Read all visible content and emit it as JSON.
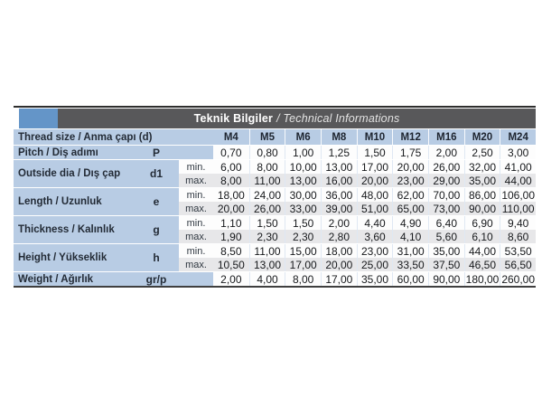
{
  "header": {
    "title_bold": "Teknik Bilgiler",
    "title_italic": "/ Technical Informations"
  },
  "colors": {
    "accent_blue_box": "#6495c8",
    "header_bar_grey": "#58585a",
    "row_light_blue": "#b8cce4",
    "stripe_white": "#fdfdfd",
    "stripe_grey": "#e7e7e9"
  },
  "table": {
    "thread_row_label": "Thread size / Anma çapı (d)",
    "columns": [
      "M4",
      "M5",
      "M6",
      "M8",
      "M10",
      "M12",
      "M16",
      "M20",
      "M24"
    ],
    "min_label": "min.",
    "max_label": "max.",
    "rows": [
      {
        "label": "Pitch / Diş adımı",
        "symbol": "P",
        "type": "single",
        "values": [
          "0,70",
          "0,80",
          "1,00",
          "1,25",
          "1,50",
          "1,75",
          "2,00",
          "2,50",
          "3,00"
        ]
      },
      {
        "label": "Outside dia / Dış çap",
        "symbol": "d1",
        "type": "minmax",
        "min": [
          "6,00",
          "8,00",
          "10,00",
          "13,00",
          "17,00",
          "20,00",
          "26,00",
          "32,00",
          "41,00"
        ],
        "max": [
          "8,00",
          "11,00",
          "13,00",
          "16,00",
          "20,00",
          "23,00",
          "29,00",
          "35,00",
          "44,00"
        ]
      },
      {
        "label": "Length / Uzunluk",
        "symbol": "e",
        "type": "minmax",
        "min": [
          "18,00",
          "24,00",
          "30,00",
          "36,00",
          "48,00",
          "62,00",
          "70,00",
          "86,00",
          "106,00"
        ],
        "max": [
          "20,00",
          "26,00",
          "33,00",
          "39,00",
          "51,00",
          "65,00",
          "73,00",
          "90,00",
          "110,00"
        ]
      },
      {
        "label": "Thickness / Kalınlık",
        "symbol": "g",
        "type": "minmax",
        "min": [
          "1,10",
          "1,50",
          "1,50",
          "2,00",
          "4,40",
          "4,90",
          "6,40",
          "6,90",
          "9,40"
        ],
        "max": [
          "1,90",
          "2,30",
          "2,30",
          "2,80",
          "3,60",
          "4,10",
          "5,60",
          "6,10",
          "8,60"
        ]
      },
      {
        "label": "Height / Yükseklik",
        "symbol": "h",
        "type": "minmax",
        "min": [
          "8,50",
          "11,00",
          "15,00",
          "18,00",
          "23,00",
          "31,00",
          "35,00",
          "44,00",
          "53,50"
        ],
        "max": [
          "10,50",
          "13,00",
          "17,00",
          "20,00",
          "25,00",
          "33,50",
          "37,50",
          "46,50",
          "56,50"
        ]
      },
      {
        "label": "Weight / Ağırlık",
        "symbol": "gr/p",
        "type": "single",
        "values": [
          "2,00",
          "4,00",
          "8,00",
          "17,00",
          "35,00",
          "60,00",
          "90,00",
          "180,00",
          "260,00"
        ]
      }
    ]
  }
}
